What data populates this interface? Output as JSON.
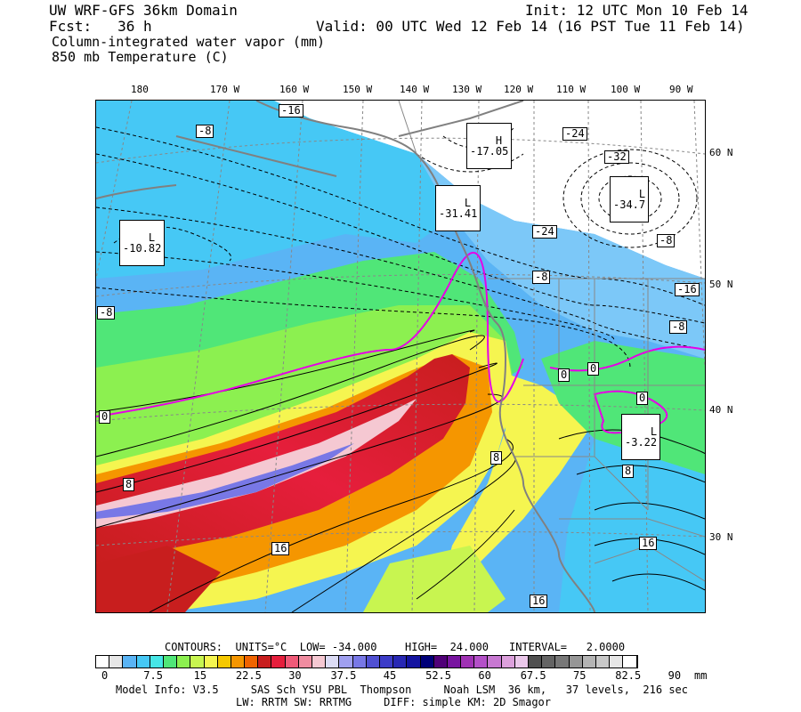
{
  "header": {
    "model_title": "UW WRF-GFS 36km Domain",
    "init_label": "Init: 12 UTC Mon 10 Feb 14",
    "forecast_label": "Fcst:   36 h",
    "valid_label": "Valid: 00 UTC Wed 12 Feb 14 (16 PST Tue 11 Feb 14)",
    "field_1": "Column-integrated water vapor (mm)",
    "field_2": "850 mb Temperature (C)"
  },
  "longitudes": [
    "180",
    "170 W",
    "160 W",
    "150 W",
    "140 W",
    "130 W",
    "120 W",
    "110 W",
    "100 W",
    "90 W"
  ],
  "latitudes": [
    "60 N",
    "50 N",
    "40 N",
    "30 N"
  ],
  "contour_labels": [
    "-16",
    "-8",
    "-8",
    "0",
    "8",
    "16",
    "-24",
    "-8",
    "-16",
    "-8",
    "-32",
    "-24",
    "-8",
    "0",
    "0",
    "0",
    "8",
    "8",
    "16",
    "16"
  ],
  "pressure_centers": [
    {
      "type": "H",
      "value": "-17.05"
    },
    {
      "type": "L",
      "value": "-31.41"
    },
    {
      "type": "L",
      "value": "-34.7"
    },
    {
      "type": "L",
      "value": "-10.82"
    },
    {
      "type": "L",
      "value": "-3.22"
    }
  ],
  "contour_info": {
    "contours_text": "CONTOURS:  UNITS=°C  LOW= -34.000",
    "high_text": "HIGH=  24.000",
    "interval_text": "INTERVAL=   2.0000"
  },
  "colorbar": {
    "colors": [
      "#ffffff",
      "#e6e6e6",
      "#5ab4f5",
      "#46c8f5",
      "#46e6e6",
      "#50e678",
      "#8cf050",
      "#c8f550",
      "#f5f550",
      "#f5c800",
      "#f59600",
      "#f06400",
      "#c81e1e",
      "#e61e3c",
      "#f05a78",
      "#f08ca0",
      "#f5c8d2",
      "#dcdcf5",
      "#a0a0f0",
      "#7878e6",
      "#5050d2",
      "#3c3cc8",
      "#2828b4",
      "#1414a0",
      "#000078",
      "#500078",
      "#7814a0",
      "#a032b4",
      "#b450c8",
      "#c878d2",
      "#dca0dc",
      "#ebc8eb",
      "#505050",
      "#646464",
      "#787878",
      "#969696",
      "#b4b4b4",
      "#c8c8c8",
      "#e6e6e6",
      "#ffffff"
    ],
    "ticks": [
      "0",
      "7.5",
      "15",
      "22.5",
      "30",
      "37.5",
      "45",
      "52.5",
      "60",
      "67.5",
      "75",
      "82.5",
      "90"
    ],
    "units": "mm"
  },
  "footer": {
    "line1": "Model Info: V3.5     SAS Sch YSU PBL  Thompson     Noah LSM  36 km,   37 levels,  216 sec",
    "line2": "LW: RRTM SW: RRTMG     DIFF: simple KM: 2D Smagor"
  }
}
